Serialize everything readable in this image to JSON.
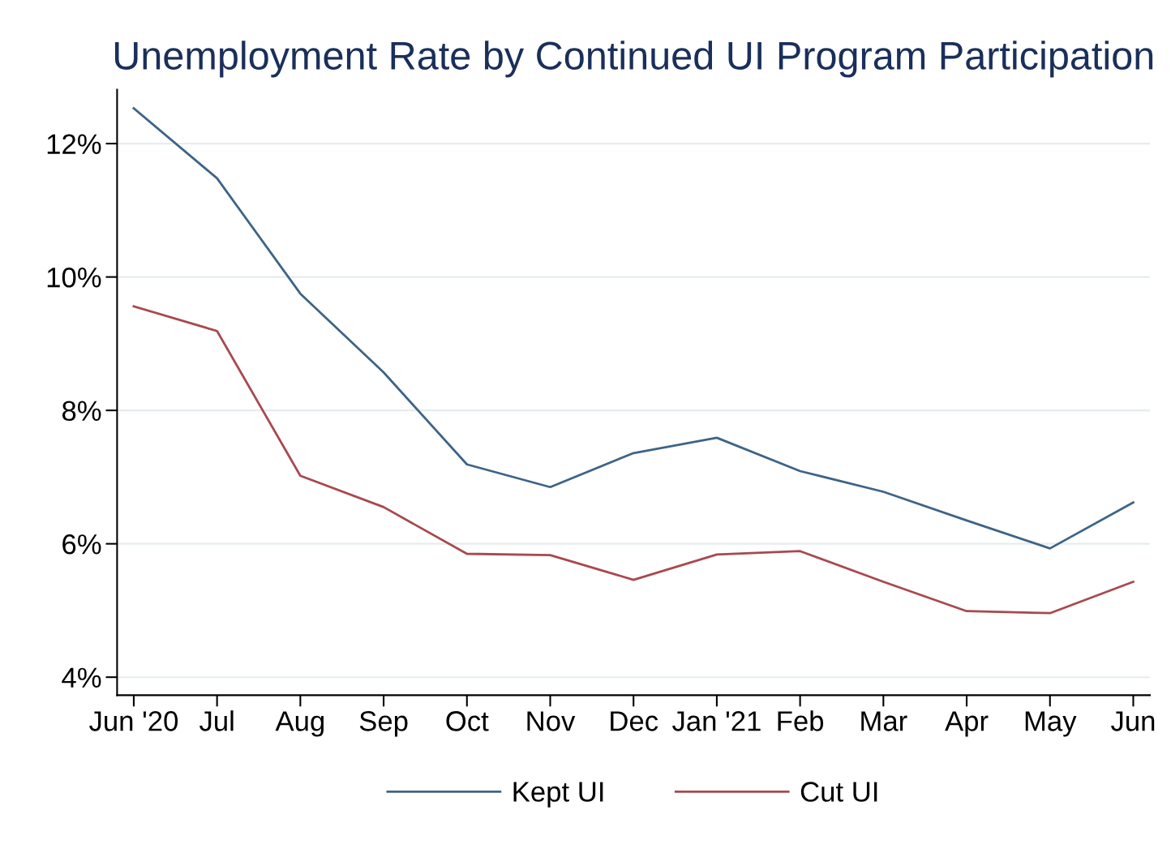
{
  "chart_data": {
    "type": "line",
    "title": "Unemployment Rate by Continued UI Program Participation",
    "categories": [
      "Jun '20",
      "Jul",
      "Aug",
      "Sep",
      "Oct",
      "Nov",
      "Dec",
      "Jan '21",
      "Feb",
      "Mar",
      "Apr",
      "May",
      "Jun"
    ],
    "series": [
      {
        "name": "Kept UI",
        "color": "#3e6487",
        "values": [
          12.53,
          11.48,
          9.75,
          8.57,
          7.19,
          6.85,
          7.36,
          7.59,
          7.09,
          6.78,
          6.35,
          5.93,
          6.62
        ]
      },
      {
        "name": "Cut UI",
        "color": "#a8494f",
        "values": [
          9.56,
          9.19,
          7.02,
          6.55,
          5.85,
          5.83,
          5.46,
          5.84,
          5.89,
          5.43,
          4.99,
          4.96,
          5.43
        ]
      }
    ],
    "ylim": [
      3.73,
      12.81
    ],
    "yticks": [
      {
        "value": 4,
        "label": "4%"
      },
      {
        "value": 6,
        "label": "6%"
      },
      {
        "value": 8,
        "label": "8%"
      },
      {
        "value": 10,
        "label": "10%"
      },
      {
        "value": 12,
        "label": "12%"
      }
    ],
    "grid": "y",
    "legend": "bottom",
    "marker": "none",
    "line_style": "solid"
  }
}
